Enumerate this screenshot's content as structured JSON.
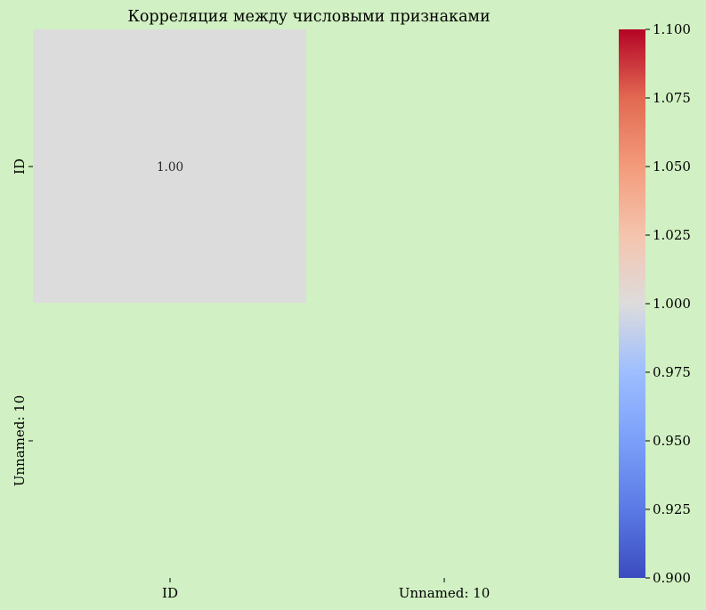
{
  "chart_data": {
    "type": "heatmap",
    "title": "Корреляция между числовыми признаками",
    "x_categories": [
      "ID",
      "Unnamed: 10"
    ],
    "y_categories": [
      "ID",
      "Unnamed: 10"
    ],
    "values": [
      [
        1.0,
        null
      ],
      [
        null,
        null
      ]
    ],
    "annotations": [
      [
        "1.00",
        ""
      ],
      [
        "",
        ""
      ]
    ],
    "colormap": "coolwarm",
    "colorbar": {
      "min": 0.9,
      "max": 1.1,
      "ticks": [
        "0.900",
        "0.925",
        "0.950",
        "0.975",
        "1.000",
        "1.025",
        "1.050",
        "1.075",
        "1.100"
      ]
    },
    "colors": {
      "background": "#d1f0c3",
      "cell_at_center": "#dcdddd"
    }
  }
}
